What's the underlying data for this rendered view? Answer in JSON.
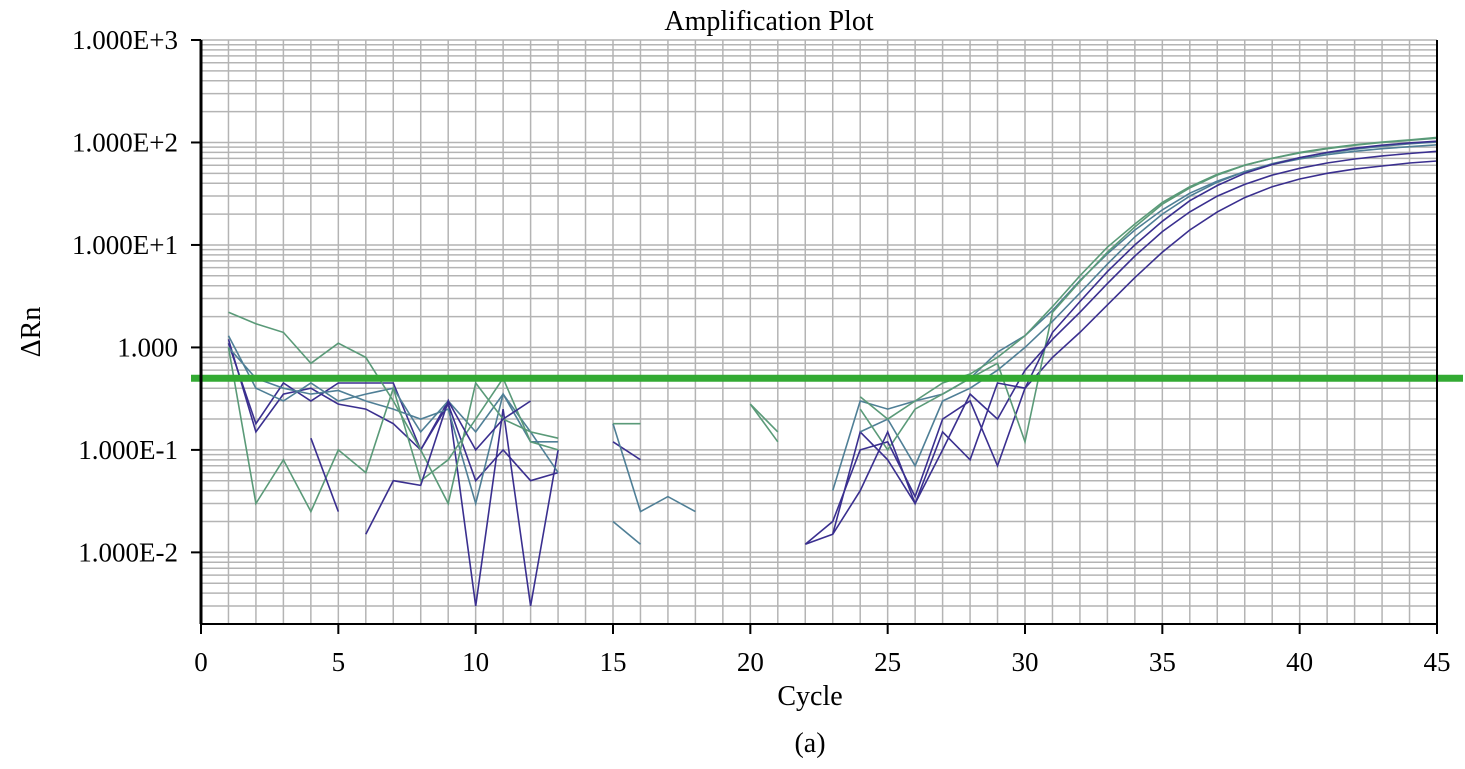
{
  "chart_data": {
    "type": "line",
    "title": "Amplification Plot",
    "xlabel": "Cycle",
    "ylabel": "ΔRn",
    "caption": "(a)",
    "x_scale": "linear",
    "y_scale": "log",
    "xlim": [
      0,
      45
    ],
    "ylim": [
      0.002,
      1000
    ],
    "x_ticks": [
      0,
      5,
      10,
      15,
      20,
      25,
      30,
      35,
      40,
      45
    ],
    "y_ticks": [
      {
        "value": 1000,
        "label": "1.000E+3"
      },
      {
        "value": 100,
        "label": "1.000E+2"
      },
      {
        "value": 10,
        "label": "1.000E+1"
      },
      {
        "value": 1,
        "label": "1.000"
      },
      {
        "value": 0.1,
        "label": "1.000E-1"
      },
      {
        "value": 0.01,
        "label": "1.000E-2"
      }
    ],
    "grid": true,
    "threshold": {
      "value": 0.5,
      "color": "#33aa33"
    },
    "colors": {
      "gridline": "#b4b4b4",
      "blue": "#3a2f8f",
      "teal": "#4f7f96",
      "green": "#5a9a78"
    },
    "series": [
      {
        "color": "#3a2f8f",
        "x": [
          1,
          2,
          3,
          4,
          5,
          6,
          7,
          8,
          9,
          10,
          11,
          12,
          13,
          null,
          15,
          16,
          null,
          22,
          23,
          24,
          25,
          26,
          27,
          28,
          29,
          30,
          31,
          32,
          33,
          34,
          35,
          36,
          37,
          38,
          39,
          40,
          41,
          42,
          43,
          44,
          45
        ],
        "y": [
          1.1,
          0.18,
          0.45,
          0.3,
          0.45,
          0.45,
          0.45,
          0.1,
          0.3,
          0.003,
          0.25,
          0.003,
          0.1,
          null,
          0.12,
          0.08,
          null,
          0.012,
          0.02,
          0.1,
          0.12,
          0.035,
          0.2,
          0.3,
          0.07,
          0.4,
          0.8,
          1.4,
          2.6,
          4.8,
          8.5,
          14,
          21,
          29,
          37,
          44,
          50,
          55,
          59,
          63,
          66
        ]
      },
      {
        "color": "#3a2f8f",
        "x": [
          1,
          2,
          3,
          4,
          5,
          6,
          7,
          8,
          9,
          10,
          11,
          12,
          13,
          null,
          22,
          23,
          24,
          25,
          26,
          27,
          28,
          29,
          30,
          31,
          32,
          33,
          34,
          35,
          36,
          37,
          38,
          39,
          40,
          41,
          42,
          43,
          44,
          45
        ],
        "y": [
          1.2,
          0.15,
          0.35,
          0.4,
          0.28,
          0.25,
          0.18,
          0.1,
          0.28,
          0.05,
          0.1,
          0.05,
          0.06,
          null,
          0.012,
          0.015,
          0.15,
          0.08,
          0.03,
          0.1,
          0.35,
          0.2,
          0.6,
          1.2,
          2.2,
          4.2,
          7.8,
          13.5,
          21,
          30,
          39,
          48,
          56,
          63,
          69,
          74,
          78,
          82
        ]
      },
      {
        "color": "#4f7f96",
        "x": [
          1,
          2,
          3,
          4,
          5,
          6,
          7,
          8,
          9,
          10,
          11,
          12,
          13,
          null,
          15,
          16,
          17,
          18,
          null,
          23,
          24,
          25,
          26,
          27,
          28,
          29,
          30,
          31,
          32,
          33,
          34,
          35,
          36,
          37,
          38,
          39,
          40,
          41,
          42,
          43,
          44,
          45
        ],
        "y": [
          1.3,
          0.4,
          0.3,
          0.45,
          0.3,
          0.35,
          0.4,
          0.15,
          0.3,
          0.15,
          0.35,
          0.12,
          0.12,
          null,
          0.02,
          0.012,
          null,
          null,
          null,
          0.04,
          0.3,
          0.25,
          0.3,
          0.35,
          0.5,
          0.9,
          1.3,
          2.3,
          4.5,
          8.2,
          14,
          22,
          32,
          42,
          52,
          61,
          69,
          76,
          82,
          87,
          91,
          95
        ]
      },
      {
        "color": "#4f7f96",
        "x": [
          1,
          2,
          3,
          4,
          5,
          6,
          7,
          8,
          9,
          10,
          11,
          12,
          13,
          null,
          15,
          16,
          17,
          18,
          null,
          24,
          25,
          26,
          27,
          28,
          29,
          30,
          31,
          32,
          33,
          34,
          35,
          36,
          37,
          38,
          39,
          40,
          41,
          42,
          43,
          44,
          45
        ],
        "y": [
          1.0,
          0.5,
          0.4,
          0.35,
          0.38,
          0.3,
          0.25,
          0.2,
          0.25,
          0.03,
          0.35,
          0.15,
          0.06,
          null,
          0.18,
          0.025,
          0.035,
          0.025,
          null,
          0.15,
          0.2,
          0.07,
          0.3,
          0.4,
          0.6,
          1.0,
          1.8,
          3.4,
          6.5,
          12,
          20,
          30,
          41,
          52,
          62,
          71,
          79,
          86,
          92,
          97,
          101
        ]
      },
      {
        "color": "#5a9a78",
        "x": [
          1,
          2,
          3,
          4,
          5,
          6,
          7,
          8,
          9,
          10,
          11,
          12,
          13,
          null,
          15,
          16,
          null,
          20,
          21,
          null,
          24,
          25,
          26,
          27,
          28,
          29,
          30,
          31,
          32,
          33,
          34,
          35,
          36,
          37,
          38,
          39,
          40,
          41,
          42,
          43,
          44,
          45
        ],
        "y": [
          2.2,
          1.7,
          1.4,
          0.7,
          1.1,
          0.8,
          0.3,
          0.1,
          0.03,
          0.45,
          0.2,
          0.15,
          0.13,
          null,
          0.18,
          0.18,
          null,
          0.28,
          0.15,
          null,
          0.33,
          0.2,
          0.3,
          0.45,
          0.55,
          0.8,
          1.3,
          2.5,
          5,
          9.5,
          16,
          26,
          37,
          49,
          60,
          70,
          79,
          87,
          94,
          100,
          105,
          110
        ]
      },
      {
        "color": "#5a9a78",
        "x": [
          1,
          2,
          3,
          4,
          5,
          6,
          7,
          8,
          9,
          10,
          11,
          12,
          13,
          null,
          20,
          21,
          null,
          24,
          25,
          26,
          27,
          28,
          29,
          30,
          31,
          32,
          33,
          34,
          35,
          36,
          37,
          38,
          39,
          40,
          41,
          42,
          43,
          44,
          45
        ],
        "y": [
          1.0,
          0.03,
          0.08,
          0.025,
          0.1,
          0.06,
          0.4,
          0.05,
          0.08,
          0.2,
          0.5,
          0.12,
          0.1,
          null,
          0.28,
          0.12,
          null,
          0.25,
          0.1,
          0.25,
          0.35,
          0.5,
          0.7,
          0.12,
          2.2,
          4.4,
          8.5,
          15,
          25,
          36,
          48,
          60,
          70,
          80,
          88,
          95,
          101,
          106,
          112
        ]
      },
      {
        "color": "#3a2f8f",
        "x": [
          null,
          4,
          5,
          null,
          6,
          7,
          8,
          9,
          10,
          11,
          12,
          null,
          23,
          24,
          25,
          26,
          27,
          28,
          29,
          30,
          31,
          32,
          33,
          34,
          35,
          36,
          37,
          38,
          39,
          40,
          41,
          42,
          43,
          44,
          45
        ],
        "y": [
          null,
          0.13,
          0.025,
          null,
          0.015,
          0.05,
          0.045,
          0.3,
          0.1,
          0.2,
          0.3,
          null,
          0.015,
          0.04,
          0.15,
          0.03,
          0.15,
          0.08,
          0.45,
          0.4,
          1.4,
          2.8,
          5.5,
          10,
          17,
          27,
          38,
          50,
          61,
          71,
          80,
          88,
          94,
          99,
          103
        ]
      }
    ]
  }
}
